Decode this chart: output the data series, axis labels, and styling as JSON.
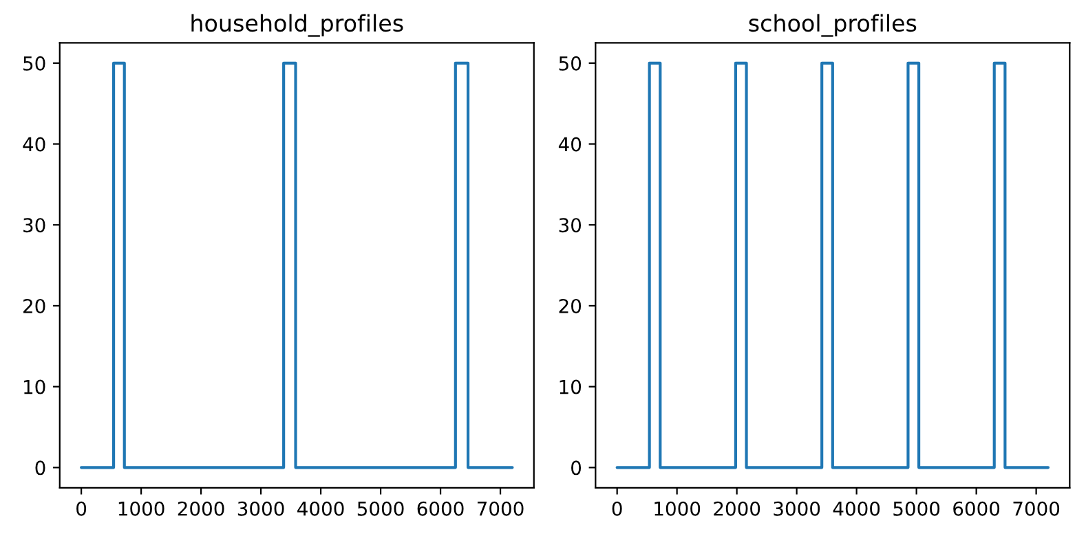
{
  "chart_data": [
    {
      "type": "line",
      "title": "household_profiles",
      "xlim": [
        -360,
        7560
      ],
      "ylim": [
        -2.5,
        52.5
      ],
      "xticks": [
        0,
        1000,
        2000,
        3000,
        4000,
        5000,
        6000,
        7000
      ],
      "yticks": [
        0,
        10,
        20,
        30,
        40,
        50
      ],
      "grid": false,
      "legend": false,
      "series": [
        {
          "color": "#1f77b4",
          "x": [
            0,
            540,
            540,
            720,
            720,
            3380,
            3380,
            3580,
            3580,
            6250,
            6250,
            6460,
            6460,
            7200
          ],
          "values": [
            0,
            0,
            50,
            50,
            0,
            0,
            50,
            50,
            0,
            0,
            50,
            50,
            0,
            0
          ]
        }
      ]
    },
    {
      "type": "line",
      "title": "school_profiles",
      "xlim": [
        -360,
        7560
      ],
      "ylim": [
        -2.5,
        52.5
      ],
      "xticks": [
        0,
        1000,
        2000,
        3000,
        4000,
        5000,
        6000,
        7000
      ],
      "yticks": [
        0,
        10,
        20,
        30,
        40,
        50
      ],
      "grid": false,
      "legend": false,
      "series": [
        {
          "color": "#1f77b4",
          "x": [
            0,
            540,
            540,
            720,
            720,
            1980,
            1980,
            2160,
            2160,
            3420,
            3420,
            3600,
            3600,
            4860,
            4860,
            5040,
            5040,
            6300,
            6300,
            6480,
            6480,
            7200
          ],
          "values": [
            0,
            0,
            50,
            50,
            0,
            0,
            50,
            50,
            0,
            0,
            50,
            50,
            0,
            0,
            50,
            50,
            0,
            0,
            50,
            50,
            0,
            0
          ]
        }
      ]
    }
  ]
}
